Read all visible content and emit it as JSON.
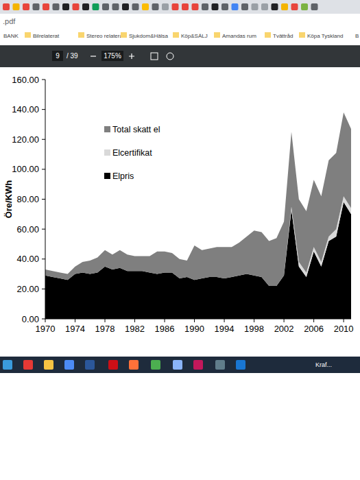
{
  "chart_data": {
    "type": "area",
    "stacked": true,
    "y_label": "Öre/KWh",
    "x": [
      1970,
      1971,
      1972,
      1973,
      1974,
      1975,
      1976,
      1977,
      1978,
      1979,
      1980,
      1981,
      1982,
      1983,
      1984,
      1985,
      1986,
      1987,
      1988,
      1989,
      1990,
      1991,
      1992,
      1993,
      1994,
      1995,
      1996,
      1997,
      1998,
      1999,
      2000,
      2001,
      2002,
      2003,
      2004,
      2005,
      2006,
      2007,
      2008,
      2009,
      2010,
      2011
    ],
    "series": [
      {
        "name": "Elpris",
        "color": "#000000",
        "values": [
          29,
          28,
          27,
          26,
          30,
          31,
          30,
          31,
          35,
          33,
          34,
          32,
          32,
          32,
          31,
          30,
          31,
          31,
          27,
          28,
          26,
          27,
          28,
          28,
          27,
          28,
          29,
          30,
          29,
          28,
          22,
          22,
          29,
          73,
          35,
          28,
          45,
          35,
          52,
          55,
          78,
          70
        ]
      },
      {
        "name": "Elcertifikat",
        "color": "#d9d9d9",
        "values": [
          0,
          0,
          0,
          0,
          0,
          0,
          0,
          0,
          0,
          0,
          0,
          0,
          0,
          0,
          0,
          0,
          0,
          0,
          0,
          0,
          0,
          0,
          0,
          0,
          0,
          0,
          0,
          0,
          0,
          0,
          0,
          0,
          0,
          2,
          3,
          3,
          3,
          3,
          3,
          5,
          4,
          4
        ]
      },
      {
        "name": "Total skatt el",
        "color": "#7f7f7f",
        "values": [
          4,
          4,
          4,
          4,
          5,
          7,
          9,
          10,
          11,
          10,
          12,
          11,
          10,
          10,
          11,
          15,
          14,
          13,
          13,
          11,
          23,
          19,
          19,
          20,
          21,
          20,
          22,
          25,
          30,
          30,
          30,
          32,
          36,
          50,
          42,
          41,
          45,
          44,
          51,
          51,
          56,
          53
        ]
      }
    ],
    "xlim": [
      1970,
      2011
    ],
    "xticks": [
      1970,
      1974,
      1978,
      1982,
      1986,
      1990,
      1994,
      1998,
      2002,
      2006,
      2010
    ],
    "ylim": [
      0,
      160
    ],
    "yticks": [
      {
        "value": 0,
        "label": "0.00"
      },
      {
        "value": 20,
        "label": "20.00"
      },
      {
        "value": 40,
        "label": "40.00"
      },
      {
        "value": 60,
        "label": "60.00"
      },
      {
        "value": 80,
        "label": "80.00"
      },
      {
        "value": 100,
        "label": "100.00"
      },
      {
        "value": 120,
        "label": "120.00"
      },
      {
        "value": 140,
        "label": "140.00"
      },
      {
        "value": 160,
        "label": "160.00"
      }
    ],
    "grid": false,
    "legend": "upper-left"
  },
  "screenshot": {
    "address": ".pdf",
    "bookmarks": [
      "BANK",
      "Bilrelaterat",
      "Stereo relaterat",
      "Sjukdom&Hälsa",
      "Köp&SÄLJ",
      "Amandas rum",
      "Tvättråd",
      "Köpa Tyskland",
      "B"
    ],
    "pdf_toolbar": {
      "page": 9,
      "pages": "/ 39",
      "zoom": "175%"
    },
    "taskbar": {
      "weather": "Kraf..."
    }
  }
}
